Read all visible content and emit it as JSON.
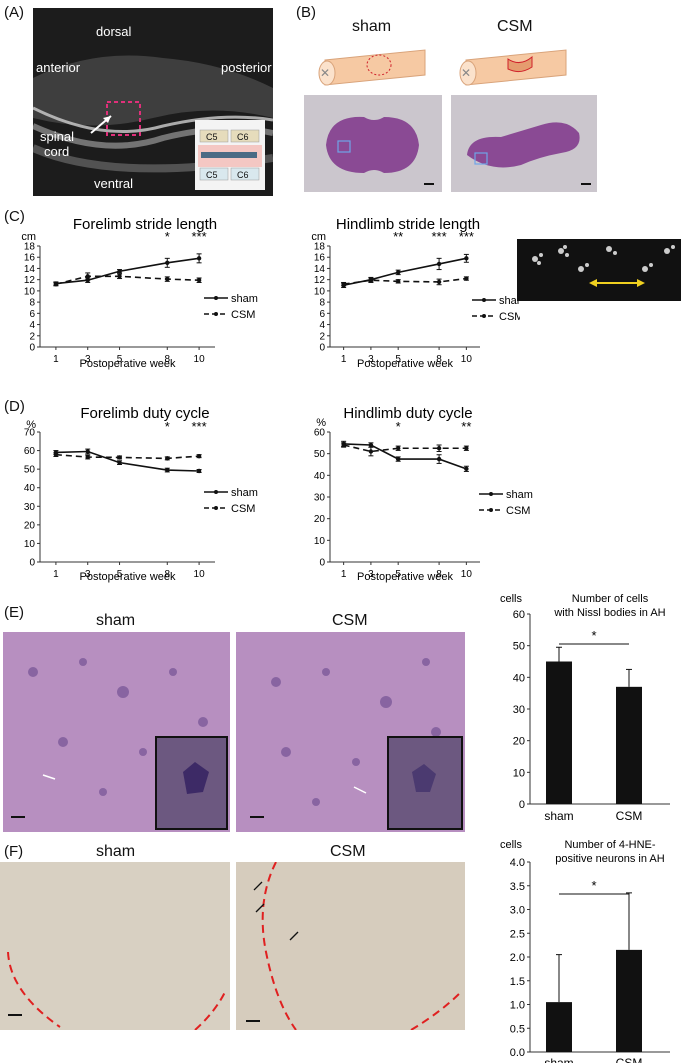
{
  "panels": {
    "A": {
      "label": "(A)",
      "mri": {
        "dorsal": "dorsal",
        "anterior": "anterior",
        "posterior": "posterior",
        "spinal": "spinal",
        "cord": "cord",
        "ventral": "ventral"
      },
      "inset": {
        "c5_top": "C5",
        "c6_top": "C6",
        "c5_bottom": "C5",
        "c6_bottom": "C6"
      }
    },
    "B": {
      "label": "(B)",
      "sham": "sham",
      "csm": "CSM"
    },
    "C": {
      "label": "(C)"
    },
    "D": {
      "label": "(D)"
    },
    "E": {
      "label": "(E)",
      "sham": "sham",
      "csm": "CSM"
    },
    "F": {
      "label": "(F)",
      "sham": "sham",
      "csm": "CSM"
    }
  },
  "chart_data": [
    {
      "id": "forelimb-stride",
      "type": "line",
      "title": "Forelimb stride length",
      "xlabel": "Postoperative week",
      "ylabel": "cm",
      "x": [
        1,
        3,
        5,
        8,
        10
      ],
      "ylim": [
        0,
        18
      ],
      "yticks": [
        0,
        2,
        4,
        6,
        8,
        10,
        12,
        14,
        16,
        18
      ],
      "series": [
        {
          "name": "sham",
          "values": [
            11.3,
            11.9,
            13.5,
            15.0,
            15.8
          ],
          "err": [
            0.3,
            0.4,
            0.3,
            0.8,
            0.8
          ],
          "style": "solid"
        },
        {
          "name": "CSM",
          "values": [
            11.2,
            12.6,
            12.6,
            12.1,
            11.9
          ],
          "err": [
            0.3,
            0.6,
            0.4,
            0.4,
            0.4
          ],
          "style": "dashed"
        }
      ],
      "significance": [
        {
          "x": 8,
          "label": "*"
        },
        {
          "x": 10,
          "label": "***"
        }
      ]
    },
    {
      "id": "hindlimb-stride",
      "type": "line",
      "title": "Hindlimb stride length",
      "xlabel": "Postoperative week",
      "ylabel": "cm",
      "x": [
        1,
        3,
        5,
        8,
        10
      ],
      "ylim": [
        0,
        18
      ],
      "yticks": [
        0,
        2,
        4,
        6,
        8,
        10,
        12,
        14,
        16,
        18
      ],
      "series": [
        {
          "name": "sham",
          "values": [
            11.0,
            12.0,
            13.3,
            14.8,
            15.8
          ],
          "err": [
            0.4,
            0.4,
            0.4,
            1.0,
            0.7
          ],
          "style": "solid"
        },
        {
          "name": "CSM",
          "values": [
            11.2,
            11.9,
            11.7,
            11.6,
            12.2
          ],
          "err": [
            0.3,
            0.4,
            0.3,
            0.5,
            0.3
          ],
          "style": "dashed"
        }
      ],
      "significance": [
        {
          "x": 5,
          "label": "**"
        },
        {
          "x": 8,
          "label": "***"
        },
        {
          "x": 10,
          "label": "***"
        }
      ]
    },
    {
      "id": "forelimb-duty",
      "type": "line",
      "title": "Forelimb duty cycle",
      "xlabel": "Postoperative week",
      "ylabel": "%",
      "x": [
        1,
        3,
        5,
        8,
        10
      ],
      "ylim": [
        0,
        70
      ],
      "yticks": [
        0,
        10,
        20,
        30,
        40,
        50,
        60,
        70
      ],
      "series": [
        {
          "name": "sham",
          "values": [
            59,
            59.5,
            53.5,
            49.5,
            49.0
          ],
          "err": [
            1.0,
            1.3,
            1.0,
            1.0,
            0.8
          ],
          "style": "solid"
        },
        {
          "name": "CSM",
          "values": [
            57.8,
            56.5,
            56.3,
            55.8,
            57.0
          ],
          "err": [
            1.0,
            1.0,
            0.8,
            0.8,
            0.8
          ],
          "style": "dashed"
        }
      ],
      "significance": [
        {
          "x": 8,
          "label": "*"
        },
        {
          "x": 10,
          "label": "***"
        }
      ]
    },
    {
      "id": "hindlimb-duty",
      "type": "line",
      "title": "Hindlimb duty cycle",
      "xlabel": "Postoperative week",
      "ylabel": "%",
      "x": [
        1,
        3,
        5,
        8,
        10
      ],
      "ylim": [
        0,
        60
      ],
      "yticks": [
        0,
        10,
        20,
        30,
        40,
        50,
        60
      ],
      "series": [
        {
          "name": "sham",
          "values": [
            54.5,
            54.0,
            47.5,
            47.5,
            43.0
          ],
          "err": [
            1.2,
            1.0,
            1.0,
            2.0,
            1.2
          ],
          "style": "solid"
        },
        {
          "name": "CSM",
          "values": [
            54.0,
            51.0,
            52.5,
            52.5,
            52.5
          ],
          "err": [
            1.0,
            2.0,
            1.0,
            1.5,
            1.0
          ],
          "style": "dashed"
        }
      ],
      "significance": [
        {
          "x": 5,
          "label": "*"
        },
        {
          "x": 10,
          "label": "**"
        }
      ]
    },
    {
      "id": "nissl-cells",
      "type": "bar",
      "title": [
        "Number of cells",
        "with Nissl bodies in AH"
      ],
      "ylabel": "cells",
      "categories": [
        "sham",
        "CSM"
      ],
      "values": [
        45,
        37
      ],
      "err": [
        4.5,
        5.5
      ],
      "ylim": [
        0,
        60
      ],
      "yticks": [
        0,
        10,
        20,
        30,
        40,
        50,
        60
      ],
      "significance": "*"
    },
    {
      "id": "hne-neurons",
      "type": "bar",
      "title": [
        "Number of 4-HNE-",
        "positive neurons in AH"
      ],
      "ylabel": "cells",
      "categories": [
        "sham",
        "CSM"
      ],
      "values": [
        1.05,
        2.15
      ],
      "err": [
        1.0,
        1.2
      ],
      "ylim": [
        0,
        4.0
      ],
      "yticks": [
        "0.0",
        "0.5",
        "1.0",
        "1.5",
        "2.0",
        "2.5",
        "3.0",
        "3.5",
        "4.0"
      ],
      "significance": "*"
    }
  ]
}
